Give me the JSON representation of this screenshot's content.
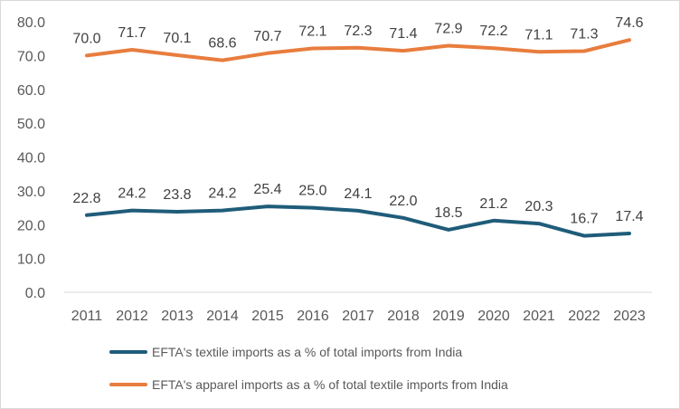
{
  "chart_data": {
    "type": "line",
    "title": "",
    "xlabel": "",
    "ylabel": "",
    "categories": [
      "2011",
      "2012",
      "2013",
      "2014",
      "2015",
      "2016",
      "2017",
      "2018",
      "2019",
      "2020",
      "2021",
      "2022",
      "2023"
    ],
    "ylim": [
      0,
      80
    ],
    "yticks": [
      "0.0",
      "10.0",
      "20.0",
      "30.0",
      "40.0",
      "50.0",
      "60.0",
      "70.0",
      "80.0"
    ],
    "grid": false,
    "legend_position": "bottom",
    "series": [
      {
        "name": "EFTA's textile imports as a % of total imports from India",
        "color": "#1f5c7a",
        "values": [
          22.8,
          24.2,
          23.8,
          24.2,
          25.4,
          25.0,
          24.1,
          22.0,
          18.5,
          21.2,
          20.3,
          16.7,
          17.4
        ],
        "labels": [
          "22.8",
          "24.2",
          "23.8",
          "24.2",
          "25.4",
          "25.0",
          "24.1",
          "22.0",
          "18.5",
          "21.2",
          "20.3",
          "16.7",
          "17.4"
        ]
      },
      {
        "name": "EFTA's apparel imports as a % of total textile imports from India",
        "color": "#e87d3e",
        "values": [
          70.0,
          71.7,
          70.1,
          68.6,
          70.7,
          72.1,
          72.3,
          71.4,
          72.9,
          72.2,
          71.1,
          71.3,
          74.6
        ],
        "labels": [
          "70.0",
          "71.7",
          "70.1",
          "68.6",
          "70.7",
          "72.1",
          "72.3",
          "71.4",
          "72.9",
          "72.2",
          "71.1",
          "71.3",
          "74.6"
        ]
      }
    ]
  }
}
